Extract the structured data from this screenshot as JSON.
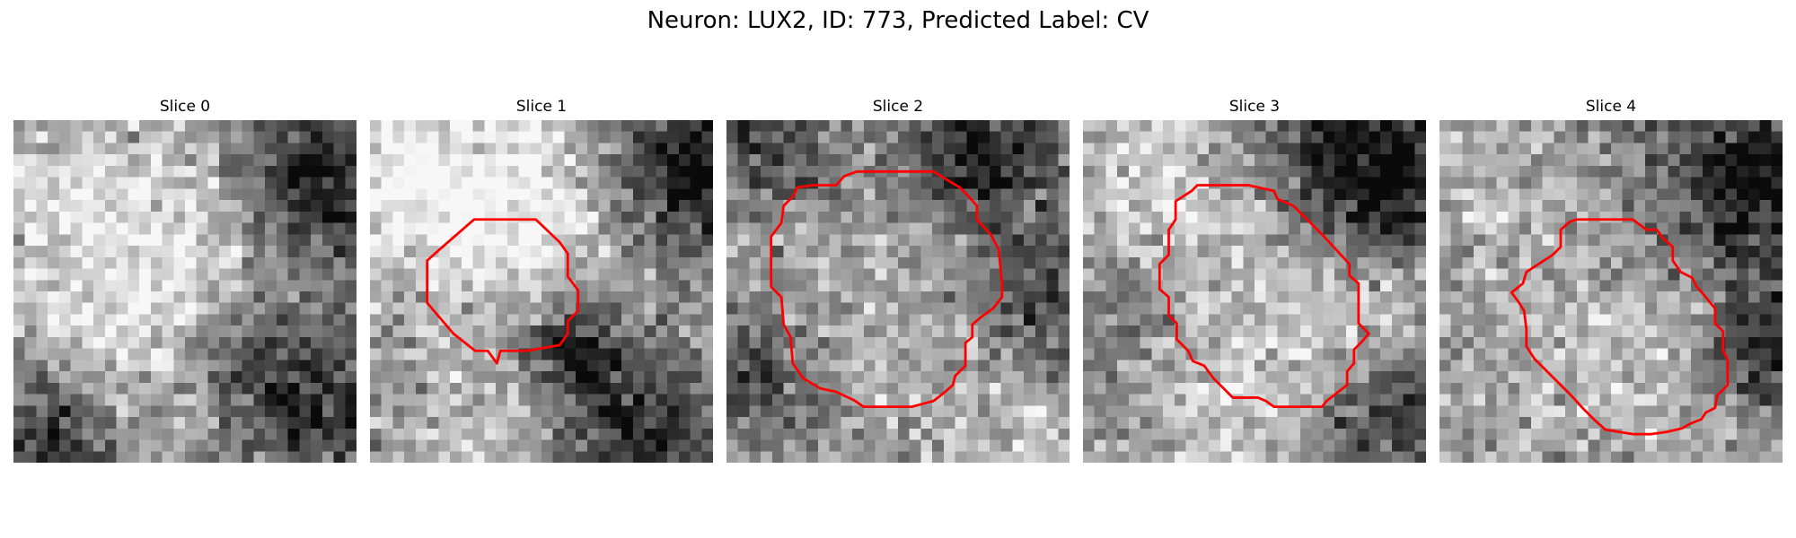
{
  "figure": {
    "title": "Neuron: LUX2, ID: 773, Predicted Label: CV"
  },
  "panels": [
    {
      "title": "Slice 0",
      "seed": 11,
      "blobs": [
        [
          15,
          13,
          9,
          0.25
        ],
        [
          4,
          7,
          7,
          0.15
        ],
        [
          8,
          21,
          6,
          0.15
        ],
        [
          26,
          5,
          5,
          -0.55
        ],
        [
          3,
          27,
          5,
          -0.45
        ],
        [
          27,
          25,
          6,
          -0.4
        ],
        [
          20,
          20,
          4,
          -0.3
        ]
      ],
      "contour": []
    },
    {
      "title": "Slice 1",
      "seed": 23,
      "blobs": [
        [
          11,
          14,
          8,
          0.1
        ],
        [
          16,
          5,
          7,
          0.35
        ],
        [
          2,
          4,
          6,
          0.3
        ],
        [
          27,
          4,
          6,
          -0.6
        ],
        [
          17,
          19,
          3,
          -0.45
        ],
        [
          23,
          26,
          6,
          -0.4
        ],
        [
          28,
          14,
          4,
          0.15
        ],
        [
          10,
          28,
          5,
          0.2
        ]
      ],
      "contour": [
        [
          9.1,
          8.7
        ],
        [
          14.5,
          8.7
        ],
        [
          16.6,
          10.7
        ],
        [
          17.3,
          11.7
        ],
        [
          17.3,
          13.7
        ],
        [
          18.2,
          14.9
        ],
        [
          18.2,
          16.7
        ],
        [
          17.3,
          17.6
        ],
        [
          17.3,
          18.7
        ],
        [
          16.6,
          19.7
        ],
        [
          13.7,
          20.2
        ],
        [
          11.4,
          20.2
        ],
        [
          11.1,
          21.3
        ],
        [
          10.3,
          20.2
        ],
        [
          9.2,
          20.2
        ],
        [
          7.3,
          18.7
        ],
        [
          5.0,
          16.0
        ],
        [
          5.0,
          12.3
        ],
        [
          6.0,
          11.4
        ]
      ]
    },
    {
      "title": "Slice 2",
      "seed": 37,
      "blobs": [
        [
          15,
          15,
          10,
          0.12
        ],
        [
          22,
          3,
          5,
          -0.5
        ],
        [
          28,
          16,
          4,
          -0.4
        ],
        [
          4,
          2,
          4,
          -0.35
        ],
        [
          2,
          22,
          4,
          -0.3
        ],
        [
          26,
          27,
          4,
          0.15
        ]
      ],
      "contour": [
        [
          6.2,
          5.9
        ],
        [
          7.5,
          5.7
        ],
        [
          9.6,
          5.7
        ],
        [
          10.3,
          4.9
        ],
        [
          11.4,
          4.5
        ],
        [
          15.3,
          4.5
        ],
        [
          18.1,
          4.5
        ],
        [
          20.4,
          5.9
        ],
        [
          21.1,
          6.6
        ],
        [
          21.9,
          7.5
        ],
        [
          21.9,
          8.7
        ],
        [
          23.1,
          10.0
        ],
        [
          23.8,
          11.3
        ],
        [
          24.1,
          14.3
        ],
        [
          24.1,
          15.5
        ],
        [
          23.3,
          16.5
        ],
        [
          22.2,
          17.3
        ],
        [
          21.5,
          17.9
        ],
        [
          21.5,
          19.0
        ],
        [
          20.9,
          19.5
        ],
        [
          20.9,
          21.5
        ],
        [
          20.0,
          22.4
        ],
        [
          19.8,
          23.2
        ],
        [
          19.0,
          23.9
        ],
        [
          18.1,
          24.6
        ],
        [
          16.2,
          25.1
        ],
        [
          12.0,
          25.1
        ],
        [
          11.1,
          24.5
        ],
        [
          9.6,
          23.8
        ],
        [
          8.2,
          23.5
        ],
        [
          6.7,
          22.6
        ],
        [
          5.8,
          21.3
        ],
        [
          5.6,
          19.0
        ],
        [
          5.0,
          17.9
        ],
        [
          4.8,
          15.5
        ],
        [
          3.9,
          14.6
        ],
        [
          3.9,
          10.2
        ],
        [
          4.8,
          9.0
        ],
        [
          5.0,
          7.5
        ],
        [
          5.8,
          6.7
        ]
      ]
    },
    {
      "title": "Slice 3",
      "seed": 51,
      "blobs": [
        [
          15,
          14,
          8,
          0.22
        ],
        [
          25,
          4,
          6,
          -0.65
        ],
        [
          4,
          4,
          5,
          0.2
        ],
        [
          27,
          26,
          5,
          -0.35
        ],
        [
          3,
          17,
          4,
          -0.2
        ],
        [
          26,
          16,
          4,
          0.2
        ],
        [
          12,
          27,
          5,
          0.15
        ]
      ],
      "contour": [
        [
          8.1,
          7.1
        ],
        [
          9.5,
          6.2
        ],
        [
          10.0,
          5.7
        ],
        [
          14.5,
          5.7
        ],
        [
          16.7,
          6.2
        ],
        [
          17.0,
          6.9
        ],
        [
          18.4,
          7.5
        ],
        [
          19.6,
          8.7
        ],
        [
          20.9,
          10.0
        ],
        [
          23.3,
          12.6
        ],
        [
          23.3,
          13.6
        ],
        [
          24.1,
          14.3
        ],
        [
          24.1,
          17.8
        ],
        [
          25.0,
          18.7
        ],
        [
          24.3,
          19.5
        ],
        [
          23.7,
          20.1
        ],
        [
          23.7,
          21.3
        ],
        [
          23.1,
          22.0
        ],
        [
          23.1,
          23.2
        ],
        [
          22.2,
          23.9
        ],
        [
          21.3,
          24.6
        ],
        [
          20.9,
          25.1
        ],
        [
          16.7,
          25.1
        ],
        [
          16.0,
          24.6
        ],
        [
          15.3,
          24.3
        ],
        [
          13.1,
          24.3
        ],
        [
          11.4,
          22.6
        ],
        [
          10.6,
          21.5
        ],
        [
          9.6,
          21.1
        ],
        [
          9.2,
          20.2
        ],
        [
          8.2,
          19.2
        ],
        [
          8.2,
          17.8
        ],
        [
          7.5,
          17.1
        ],
        [
          7.5,
          15.5
        ],
        [
          6.7,
          14.8
        ],
        [
          6.7,
          12.6
        ],
        [
          7.5,
          11.8
        ],
        [
          7.5,
          9.6
        ],
        [
          8.1,
          8.7
        ]
      ]
    },
    {
      "title": "Slice 4",
      "seed": 67,
      "blobs": [
        [
          17,
          17,
          7,
          0.18
        ],
        [
          27,
          5,
          6,
          -0.55
        ],
        [
          28,
          20,
          4,
          -0.45
        ],
        [
          3,
          5,
          6,
          0.15
        ],
        [
          4,
          25,
          5,
          0.1
        ],
        [
          24,
          27,
          4,
          0.1
        ]
      ],
      "contour": [
        [
          10.6,
          9.6
        ],
        [
          11.4,
          8.9
        ],
        [
          12.0,
          8.7
        ],
        [
          16.9,
          8.7
        ],
        [
          18.1,
          9.6
        ],
        [
          19.0,
          9.6
        ],
        [
          19.6,
          10.4
        ],
        [
          20.4,
          11.1
        ],
        [
          20.4,
          12.3
        ],
        [
          21.1,
          13.3
        ],
        [
          22.1,
          13.8
        ],
        [
          22.5,
          14.6
        ],
        [
          23.2,
          15.4
        ],
        [
          24.1,
          16.5
        ],
        [
          24.1,
          17.8
        ],
        [
          24.8,
          18.5
        ],
        [
          24.8,
          20.2
        ],
        [
          25.2,
          21.0
        ],
        [
          25.2,
          23.2
        ],
        [
          24.3,
          24.1
        ],
        [
          24.1,
          25.2
        ],
        [
          23.3,
          25.6
        ],
        [
          22.9,
          26.2
        ],
        [
          21.9,
          26.6
        ],
        [
          21.2,
          27.0
        ],
        [
          19.9,
          27.3
        ],
        [
          18.5,
          27.5
        ],
        [
          16.9,
          27.5
        ],
        [
          14.5,
          27.1
        ],
        [
          13.6,
          26.3
        ],
        [
          12.6,
          25.3
        ],
        [
          11.6,
          24.2
        ],
        [
          10.5,
          23.1
        ],
        [
          9.4,
          22.0
        ],
        [
          8.3,
          20.9
        ],
        [
          7.6,
          19.8
        ],
        [
          7.6,
          18.3
        ],
        [
          7.4,
          16.7
        ],
        [
          6.9,
          15.9
        ],
        [
          6.3,
          15.1
        ],
        [
          7.3,
          14.3
        ],
        [
          7.6,
          13.3
        ],
        [
          9.9,
          11.8
        ],
        [
          10.6,
          11.1
        ]
      ]
    }
  ]
}
